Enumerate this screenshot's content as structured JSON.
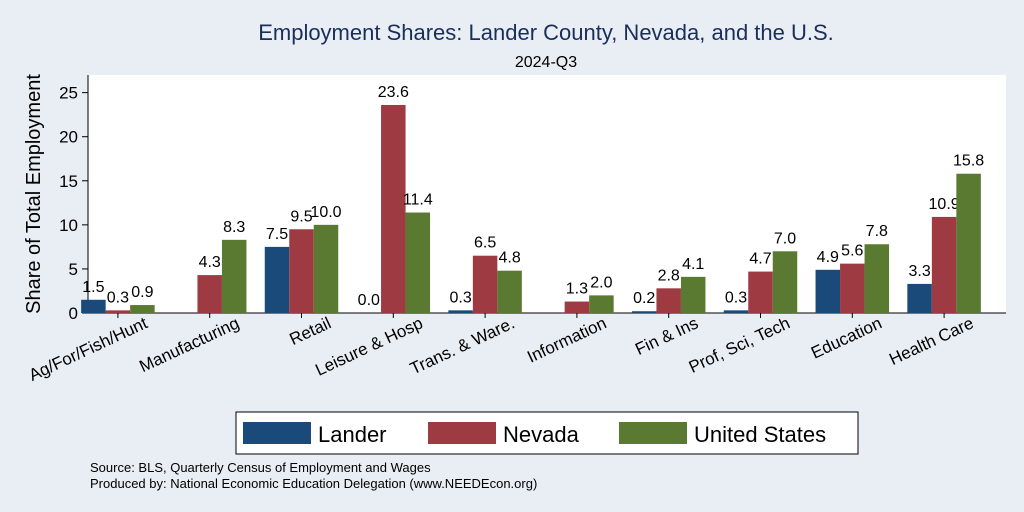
{
  "chart_data": {
    "type": "bar",
    "title": "Employment Shares: Lander County, Nevada, and the U.S.",
    "subtitle": "2024-Q3",
    "xlabel": "",
    "ylabel": "Share of Total Employment",
    "ylim": [
      0,
      27
    ],
    "yticks": [
      0,
      5,
      10,
      15,
      20,
      25
    ],
    "categories": [
      "Ag/For/Fish/Hunt",
      "Manufacturing",
      "Retail",
      "Leisure & Hosp",
      "Trans. & Ware.",
      "Information",
      "Fin & Ins",
      "Prof, Sci, Tech",
      "Education",
      "Health Care"
    ],
    "series": [
      {
        "name": "Lander",
        "color": "#1a4a7a",
        "values": [
          1.5,
          null,
          7.5,
          0.0,
          0.3,
          null,
          0.2,
          0.3,
          4.9,
          3.3
        ],
        "labels": [
          "1.5",
          "",
          "7.5",
          "0.0",
          "0.3",
          "",
          "0.2",
          "0.3",
          "4.9",
          "3.3"
        ]
      },
      {
        "name": "Nevada",
        "color": "#9e3a42",
        "values": [
          0.3,
          4.3,
          9.5,
          23.6,
          6.5,
          1.3,
          2.8,
          4.7,
          5.6,
          10.9
        ],
        "labels": [
          "0.3",
          "4.3",
          "9.5",
          "23.6",
          "6.5",
          "1.3",
          "2.8",
          "4.7",
          "5.6",
          "10.9"
        ]
      },
      {
        "name": "United States",
        "color": "#5a7a32",
        "values": [
          0.9,
          8.3,
          10.0,
          11.4,
          4.8,
          2.0,
          4.1,
          7.0,
          7.8,
          15.8
        ],
        "labels": [
          "0.9",
          "8.3",
          "10.0",
          "11.4",
          "4.8",
          "2.0",
          "4.1",
          "7.0",
          "7.8",
          "15.8"
        ]
      }
    ],
    "legend": "bottom",
    "grid": true
  },
  "notes": {
    "source": "Source: BLS, Quarterly Census of Employment and Wages",
    "produced_by": "Produced by: National Economic Education Delegation (www.NEEDEcon.org)"
  }
}
